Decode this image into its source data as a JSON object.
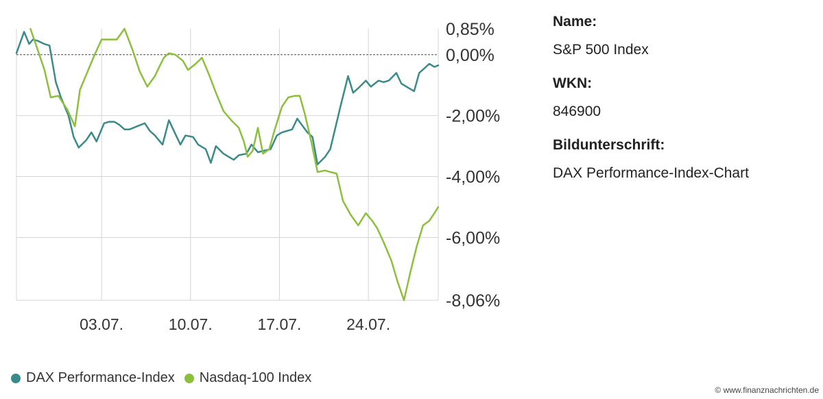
{
  "chart_data": {
    "type": "line",
    "title": "",
    "xlabel": "",
    "ylabel": "",
    "y_ticks": [
      "0,85%",
      "0,00%",
      "-2,00%",
      "-4,00%",
      "-6,00%",
      "-8,06%"
    ],
    "y_tick_values": [
      0.85,
      0.0,
      -2.0,
      -4.0,
      -6.0,
      -8.06
    ],
    "ylim": [
      -8.06,
      0.85
    ],
    "x_ticks": [
      "03.07.",
      "10.07.",
      "17.07.",
      "24.07."
    ],
    "x_tick_values": [
      7,
      14,
      21,
      28
    ],
    "xlim": [
      0.3,
      33.5
    ],
    "grid": true,
    "baseline": 0.0,
    "legend_position": "bottom-left",
    "series": [
      {
        "name": "DAX Performance-Index",
        "color": "#3a8a8a",
        "x": [
          0.3,
          0.9,
          1.3,
          1.6,
          2.0,
          2.5,
          2.9,
          3.4,
          3.8,
          4.4,
          4.8,
          5.2,
          5.8,
          6.2,
          6.6,
          7.2,
          7.6,
          8.0,
          8.4,
          8.8,
          9.2,
          9.8,
          10.4,
          10.8,
          11.2,
          11.8,
          12.3,
          12.8,
          13.2,
          13.6,
          14.2,
          14.6,
          15.2,
          15.6,
          16.0,
          16.6,
          17.0,
          17.4,
          17.8,
          18.4,
          18.8,
          19.3,
          19.8,
          20.3,
          20.8,
          21.2,
          21.6,
          22.0,
          22.4,
          23.2,
          23.6,
          24.0,
          24.6,
          25.0,
          25.4,
          25.8,
          26.4,
          26.8,
          27.2,
          27.8,
          28.2,
          28.8,
          29.2,
          29.6,
          30.2,
          30.6,
          31.2,
          31.6,
          32.0,
          32.4,
          32.8,
          33.2,
          33.5
        ],
        "values": [
          0.05,
          0.75,
          0.35,
          0.5,
          0.45,
          0.35,
          0.3,
          -0.9,
          -1.4,
          -2.0,
          -2.7,
          -3.05,
          -2.8,
          -2.55,
          -2.85,
          -2.25,
          -2.2,
          -2.2,
          -2.3,
          -2.45,
          -2.45,
          -2.35,
          -2.25,
          -2.5,
          -2.65,
          -2.95,
          -2.15,
          -2.6,
          -2.95,
          -2.65,
          -2.7,
          -2.95,
          -3.1,
          -3.55,
          -3.0,
          -3.25,
          -3.35,
          -3.45,
          -3.3,
          -3.25,
          -2.95,
          -3.2,
          -3.15,
          -3.1,
          -2.65,
          -2.55,
          -2.5,
          -2.45,
          -2.1,
          -2.55,
          -2.7,
          -3.6,
          -3.35,
          -3.1,
          -2.4,
          -1.7,
          -0.7,
          -1.25,
          -1.1,
          -0.85,
          -1.05,
          -0.85,
          -0.9,
          -0.85,
          -0.6,
          -0.95,
          -1.1,
          -1.2,
          -0.6,
          -0.45,
          -0.3,
          -0.4,
          -0.35
        ]
      },
      {
        "name": "Nasdaq-100 Index",
        "color": "#8cc03c",
        "x": [
          1.4,
          1.9,
          2.5,
          3.0,
          3.6,
          4.3,
          4.9,
          5.3,
          5.8,
          6.4,
          7.0,
          7.6,
          8.2,
          8.8,
          9.4,
          10.0,
          10.6,
          11.2,
          11.6,
          11.9,
          12.3,
          12.8,
          13.4,
          13.8,
          14.4,
          14.9,
          15.5,
          16.0,
          16.6,
          17.2,
          17.8,
          18.2,
          18.5,
          18.9,
          19.3,
          19.7,
          20.2,
          20.6,
          21.2,
          21.7,
          22.2,
          22.6,
          23.0,
          23.5,
          24.0,
          24.6,
          25.0,
          25.5,
          26.0,
          26.6,
          27.2,
          27.8,
          28.3,
          28.7,
          29.2,
          29.8,
          30.3,
          30.8,
          31.3,
          31.8,
          32.3,
          32.8,
          33.2,
          33.5
        ],
        "values": [
          0.85,
          0.25,
          -0.5,
          -1.4,
          -1.35,
          -1.8,
          -2.35,
          -1.15,
          -0.65,
          -0.05,
          0.5,
          0.5,
          0.5,
          0.85,
          0.2,
          -0.55,
          -1.05,
          -0.7,
          -0.35,
          -0.1,
          0.05,
          0.0,
          -0.2,
          -0.5,
          -0.3,
          -0.1,
          -0.7,
          -1.25,
          -1.85,
          -2.15,
          -2.4,
          -2.85,
          -3.35,
          -3.15,
          -2.4,
          -3.25,
          -3.1,
          -2.5,
          -1.7,
          -1.4,
          -1.35,
          -1.35,
          -1.95,
          -2.85,
          -3.85,
          -3.8,
          -3.85,
          -3.9,
          -4.8,
          -5.25,
          -5.6,
          -5.2,
          -5.45,
          -5.7,
          -6.15,
          -6.75,
          -7.45,
          -8.06,
          -7.15,
          -6.3,
          -5.6,
          -5.45,
          -5.2,
          -5.0
        ]
      }
    ]
  },
  "info": {
    "name_label": "Name:",
    "name_value": "S&P 500 Index",
    "wkn_label": "WKN:",
    "wkn_value": "846900",
    "caption_label": "Bildunterschrift:",
    "caption_value": "DAX Performance-Index-Chart"
  },
  "legend": [
    {
      "name": "DAX Performance-Index",
      "color": "#3a8a8a"
    },
    {
      "name": "Nasdaq-100 Index",
      "color": "#8cc03c"
    }
  ],
  "watermark": "© www.finanznachrichten.de"
}
